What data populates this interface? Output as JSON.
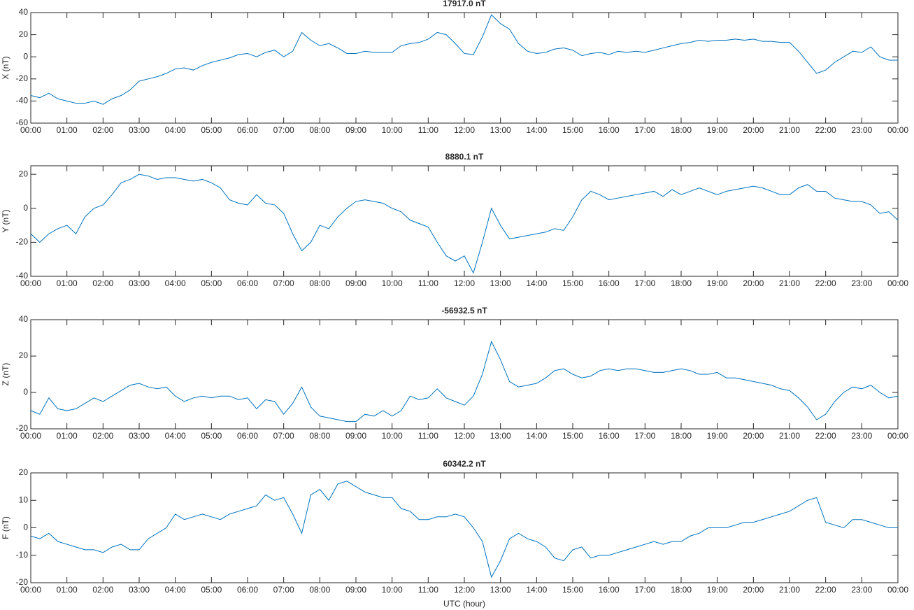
{
  "chart_data": [
    {
      "type": "line",
      "title": "17917.0 nT",
      "ylabel": "X (nT)",
      "color": "#0072bd",
      "x": [
        0,
        0.25,
        0.5,
        0.75,
        1,
        1.25,
        1.5,
        1.75,
        2,
        2.25,
        2.5,
        2.75,
        3,
        3.25,
        3.5,
        3.75,
        4,
        4.25,
        4.5,
        4.75,
        5,
        5.25,
        5.5,
        5.75,
        6,
        6.25,
        6.5,
        6.75,
        7,
        7.25,
        7.5,
        7.75,
        8,
        8.25,
        8.5,
        8.75,
        9,
        9.25,
        9.5,
        9.75,
        10,
        10.25,
        10.5,
        10.75,
        11,
        11.25,
        11.5,
        11.75,
        12,
        12.25,
        12.5,
        12.75,
        13,
        13.25,
        13.5,
        13.75,
        14,
        14.25,
        14.5,
        14.75,
        15,
        15.25,
        15.5,
        15.75,
        16,
        16.25,
        16.5,
        16.75,
        17,
        17.25,
        17.5,
        17.75,
        18,
        18.25,
        18.5,
        18.75,
        19,
        19.25,
        19.5,
        19.75,
        20,
        20.25,
        20.5,
        20.75,
        21,
        21.25,
        21.5,
        21.75,
        22,
        22.25,
        22.5,
        22.75,
        23,
        23.25,
        23.5,
        23.75,
        24
      ],
      "values": [
        -35,
        -37,
        -33,
        -38,
        -40,
        -42,
        -42,
        -40,
        -43,
        -38,
        -35,
        -30,
        -22,
        -20,
        -18,
        -15,
        -11,
        -10,
        -12,
        -8,
        -5,
        -3,
        -1,
        2,
        3,
        0,
        4,
        6,
        0,
        5,
        22,
        15,
        10,
        12,
        8,
        3,
        3,
        5,
        4,
        4,
        4,
        10,
        12,
        13,
        16,
        22,
        20,
        12,
        3,
        2,
        18,
        38,
        30,
        25,
        12,
        5,
        3,
        4,
        7,
        8,
        6,
        1,
        3,
        4,
        2,
        5,
        4,
        5,
        4,
        6,
        8,
        10,
        12,
        13,
        15,
        14,
        15,
        15,
        16,
        15,
        16,
        14,
        14,
        13,
        13,
        5,
        -5,
        -15,
        -12,
        -5,
        0,
        5,
        4,
        9,
        0,
        -3,
        -3
      ],
      "xlim": [
        0,
        24
      ],
      "ylim": [
        -60,
        40
      ],
      "yticks": [
        -60,
        -40,
        -20,
        0,
        20,
        40
      ],
      "xticks": [
        {
          "value": 0,
          "label": "00:00"
        },
        {
          "value": 1,
          "label": "01:00"
        },
        {
          "value": 2,
          "label": "02:00"
        },
        {
          "value": 3,
          "label": "03:00"
        },
        {
          "value": 4,
          "label": "04:00"
        },
        {
          "value": 5,
          "label": "05:00"
        },
        {
          "value": 6,
          "label": "06:00"
        },
        {
          "value": 7,
          "label": "07:00"
        },
        {
          "value": 8,
          "label": "08:00"
        },
        {
          "value": 9,
          "label": "09:00"
        },
        {
          "value": 10,
          "label": "10:00"
        },
        {
          "value": 11,
          "label": "11:00"
        },
        {
          "value": 12,
          "label": "12:00"
        },
        {
          "value": 13,
          "label": "13:00"
        },
        {
          "value": 14,
          "label": "14:00"
        },
        {
          "value": 15,
          "label": "15:00"
        },
        {
          "value": 16,
          "label": "16:00"
        },
        {
          "value": 17,
          "label": "17:00"
        },
        {
          "value": 18,
          "label": "18:00"
        },
        {
          "value": 19,
          "label": "19:00"
        },
        {
          "value": 20,
          "label": "20:00"
        },
        {
          "value": 21,
          "label": "21:00"
        },
        {
          "value": 22,
          "label": "22:00"
        },
        {
          "value": 23,
          "label": "23:00"
        },
        {
          "value": 24,
          "label": "00:00"
        }
      ]
    },
    {
      "type": "line",
      "title": "8880.1 nT",
      "ylabel": "Y (nT)",
      "color": "#0072bd",
      "x": [
        0,
        0.25,
        0.5,
        0.75,
        1,
        1.25,
        1.5,
        1.75,
        2,
        2.25,
        2.5,
        2.75,
        3,
        3.25,
        3.5,
        3.75,
        4,
        4.25,
        4.5,
        4.75,
        5,
        5.25,
        5.5,
        5.75,
        6,
        6.25,
        6.5,
        6.75,
        7,
        7.25,
        7.5,
        7.75,
        8,
        8.25,
        8.5,
        8.75,
        9,
        9.25,
        9.5,
        9.75,
        10,
        10.25,
        10.5,
        10.75,
        11,
        11.25,
        11.5,
        11.75,
        12,
        12.25,
        12.5,
        12.75,
        13,
        13.25,
        13.5,
        13.75,
        14,
        14.25,
        14.5,
        14.75,
        15,
        15.25,
        15.5,
        15.75,
        16,
        16.25,
        16.5,
        16.75,
        17,
        17.25,
        17.5,
        17.75,
        18,
        18.25,
        18.5,
        18.75,
        19,
        19.25,
        19.5,
        19.75,
        20,
        20.25,
        20.5,
        20.75,
        21,
        21.25,
        21.5,
        21.75,
        22,
        22.25,
        22.5,
        22.75,
        23,
        23.25,
        23.5,
        23.75,
        24
      ],
      "values": [
        -15,
        -20,
        -15,
        -12,
        -10,
        -15,
        -5,
        0,
        2,
        8,
        15,
        17,
        20,
        19,
        17,
        18,
        18,
        17,
        16,
        17,
        15,
        12,
        5,
        3,
        2,
        8,
        3,
        2,
        -3,
        -15,
        -25,
        -20,
        -10,
        -12,
        -5,
        0,
        4,
        5,
        4,
        3,
        0,
        -2,
        -7,
        -9,
        -11,
        -20,
        -28,
        -31,
        -28,
        -38,
        -20,
        0,
        -10,
        -18,
        -17,
        -16,
        -15,
        -14,
        -12,
        -13,
        -5,
        5,
        10,
        8,
        5,
        6,
        7,
        8,
        9,
        10,
        7,
        11,
        8,
        10,
        12,
        10,
        8,
        10,
        11,
        12,
        13,
        12,
        10,
        8,
        8,
        12,
        14,
        10,
        10,
        6,
        5,
        4,
        4,
        2,
        -3,
        -2,
        -7
      ],
      "xlim": [
        0,
        24
      ],
      "ylim": [
        -40,
        25
      ],
      "yticks": [
        -40,
        -20,
        0,
        20
      ],
      "xticks": [
        {
          "value": 0,
          "label": "00:00"
        },
        {
          "value": 1,
          "label": "01:00"
        },
        {
          "value": 2,
          "label": "02:00"
        },
        {
          "value": 3,
          "label": "03:00"
        },
        {
          "value": 4,
          "label": "04:00"
        },
        {
          "value": 5,
          "label": "05:00"
        },
        {
          "value": 6,
          "label": "06:00"
        },
        {
          "value": 7,
          "label": "07:00"
        },
        {
          "value": 8,
          "label": "08:00"
        },
        {
          "value": 9,
          "label": "09:00"
        },
        {
          "value": 10,
          "label": "10:00"
        },
        {
          "value": 11,
          "label": "11:00"
        },
        {
          "value": 12,
          "label": "12:00"
        },
        {
          "value": 13,
          "label": "13:00"
        },
        {
          "value": 14,
          "label": "14:00"
        },
        {
          "value": 15,
          "label": "15:00"
        },
        {
          "value": 16,
          "label": "16:00"
        },
        {
          "value": 17,
          "label": "17:00"
        },
        {
          "value": 18,
          "label": "18:00"
        },
        {
          "value": 19,
          "label": "19:00"
        },
        {
          "value": 20,
          "label": "20:00"
        },
        {
          "value": 21,
          "label": "21:00"
        },
        {
          "value": 22,
          "label": "22:00"
        },
        {
          "value": 23,
          "label": "23:00"
        },
        {
          "value": 24,
          "label": "00:00"
        }
      ]
    },
    {
      "type": "line",
      "title": "-56932.5 nT",
      "ylabel": "Z (nT)",
      "color": "#0072bd",
      "x": [
        0,
        0.25,
        0.5,
        0.75,
        1,
        1.25,
        1.5,
        1.75,
        2,
        2.25,
        2.5,
        2.75,
        3,
        3.25,
        3.5,
        3.75,
        4,
        4.25,
        4.5,
        4.75,
        5,
        5.25,
        5.5,
        5.75,
        6,
        6.25,
        6.5,
        6.75,
        7,
        7.25,
        7.5,
        7.75,
        8,
        8.25,
        8.5,
        8.75,
        9,
        9.25,
        9.5,
        9.75,
        10,
        10.25,
        10.5,
        10.75,
        11,
        11.25,
        11.5,
        11.75,
        12,
        12.25,
        12.5,
        12.75,
        13,
        13.25,
        13.5,
        13.75,
        14,
        14.25,
        14.5,
        14.75,
        15,
        15.25,
        15.5,
        15.75,
        16,
        16.25,
        16.5,
        16.75,
        17,
        17.25,
        17.5,
        17.75,
        18,
        18.25,
        18.5,
        18.75,
        19,
        19.25,
        19.5,
        19.75,
        20,
        20.25,
        20.5,
        20.75,
        21,
        21.25,
        21.5,
        21.75,
        22,
        22.25,
        22.5,
        22.75,
        23,
        23.25,
        23.5,
        23.75,
        24
      ],
      "values": [
        -10,
        -12,
        -3,
        -9,
        -10,
        -9,
        -6,
        -3,
        -5,
        -2,
        1,
        4,
        5,
        3,
        2,
        3,
        -2,
        -5,
        -3,
        -2,
        -3,
        -2,
        -2,
        -4,
        -3,
        -9,
        -4,
        -5,
        -12,
        -6,
        3,
        -8,
        -13,
        -14,
        -15,
        -16,
        -16,
        -12,
        -13,
        -10,
        -13,
        -10,
        -2,
        -4,
        -3,
        2,
        -3,
        -5,
        -7,
        -2,
        10,
        28,
        18,
        6,
        3,
        4,
        5,
        8,
        12,
        13,
        10,
        8,
        9,
        12,
        13,
        12,
        13,
        13,
        12,
        11,
        11,
        12,
        13,
        12,
        10,
        10,
        11,
        8,
        8,
        7,
        6,
        5,
        4,
        2,
        1,
        -3,
        -8,
        -15,
        -12,
        -5,
        0,
        3,
        2,
        4,
        0,
        -3,
        -2
      ],
      "xlim": [
        0,
        24
      ],
      "ylim": [
        -20,
        40
      ],
      "yticks": [
        -20,
        0,
        20,
        40
      ],
      "xticks": [
        {
          "value": 0,
          "label": "00:00"
        },
        {
          "value": 1,
          "label": "01:00"
        },
        {
          "value": 2,
          "label": "02:00"
        },
        {
          "value": 3,
          "label": "03:00"
        },
        {
          "value": 4,
          "label": "04:00"
        },
        {
          "value": 5,
          "label": "05:00"
        },
        {
          "value": 6,
          "label": "06:00"
        },
        {
          "value": 7,
          "label": "07:00"
        },
        {
          "value": 8,
          "label": "08:00"
        },
        {
          "value": 9,
          "label": "09:00"
        },
        {
          "value": 10,
          "label": "10:00"
        },
        {
          "value": 11,
          "label": "11:00"
        },
        {
          "value": 12,
          "label": "12:00"
        },
        {
          "value": 13,
          "label": "13:00"
        },
        {
          "value": 14,
          "label": "14:00"
        },
        {
          "value": 15,
          "label": "15:00"
        },
        {
          "value": 16,
          "label": "16:00"
        },
        {
          "value": 17,
          "label": "17:00"
        },
        {
          "value": 18,
          "label": "18:00"
        },
        {
          "value": 19,
          "label": "19:00"
        },
        {
          "value": 20,
          "label": "20:00"
        },
        {
          "value": 21,
          "label": "21:00"
        },
        {
          "value": 22,
          "label": "22:00"
        },
        {
          "value": 23,
          "label": "23:00"
        },
        {
          "value": 24,
          "label": "00:00"
        }
      ]
    },
    {
      "type": "line",
      "title": "60342.2 nT",
      "ylabel": "F (nT)",
      "xlabel": "UTC (hour)",
      "color": "#0072bd",
      "x": [
        0,
        0.25,
        0.5,
        0.75,
        1,
        1.25,
        1.5,
        1.75,
        2,
        2.25,
        2.5,
        2.75,
        3,
        3.25,
        3.5,
        3.75,
        4,
        4.25,
        4.5,
        4.75,
        5,
        5.25,
        5.5,
        5.75,
        6,
        6.25,
        6.5,
        6.75,
        7,
        7.25,
        7.5,
        7.75,
        8,
        8.25,
        8.5,
        8.75,
        9,
        9.25,
        9.5,
        9.75,
        10,
        10.25,
        10.5,
        10.75,
        11,
        11.25,
        11.5,
        11.75,
        12,
        12.25,
        12.5,
        12.75,
        13,
        13.25,
        13.5,
        13.75,
        14,
        14.25,
        14.5,
        14.75,
        15,
        15.25,
        15.5,
        15.75,
        16,
        16.25,
        16.5,
        16.75,
        17,
        17.25,
        17.5,
        17.75,
        18,
        18.25,
        18.5,
        18.75,
        19,
        19.25,
        19.5,
        19.75,
        20,
        20.25,
        20.5,
        20.75,
        21,
        21.25,
        21.5,
        21.75,
        22,
        22.25,
        22.5,
        22.75,
        23,
        23.25,
        23.5,
        23.75,
        24
      ],
      "values": [
        -3,
        -4,
        -2,
        -5,
        -6,
        -7,
        -8,
        -8,
        -9,
        -7,
        -6,
        -8,
        -8,
        -4,
        -2,
        0,
        5,
        3,
        4,
        5,
        4,
        3,
        5,
        6,
        7,
        8,
        12,
        10,
        11,
        5,
        -2,
        12,
        14,
        10,
        16,
        17,
        15,
        13,
        12,
        11,
        11,
        7,
        6,
        3,
        3,
        4,
        4,
        5,
        4,
        0,
        -5,
        -18,
        -12,
        -4,
        -2,
        -4,
        -5,
        -7,
        -11,
        -12,
        -8,
        -7,
        -11,
        -10,
        -10,
        -9,
        -8,
        -7,
        -6,
        -5,
        -6,
        -5,
        -5,
        -3,
        -2,
        0,
        0,
        0,
        1,
        2,
        2,
        3,
        4,
        5,
        6,
        8,
        10,
        11,
        2,
        1,
        0,
        3,
        3,
        2,
        1,
        0,
        0
      ],
      "xlim": [
        0,
        24
      ],
      "ylim": [
        -20,
        20
      ],
      "yticks": [
        -20,
        -10,
        0,
        10,
        20
      ],
      "xticks": [
        {
          "value": 0,
          "label": "00:00"
        },
        {
          "value": 1,
          "label": "01:00"
        },
        {
          "value": 2,
          "label": "02:00"
        },
        {
          "value": 3,
          "label": "03:00"
        },
        {
          "value": 4,
          "label": "04:00"
        },
        {
          "value": 5,
          "label": "05:00"
        },
        {
          "value": 6,
          "label": "06:00"
        },
        {
          "value": 7,
          "label": "07:00"
        },
        {
          "value": 8,
          "label": "08:00"
        },
        {
          "value": 9,
          "label": "09:00"
        },
        {
          "value": 10,
          "label": "10:00"
        },
        {
          "value": 11,
          "label": "11:00"
        },
        {
          "value": 12,
          "label": "12:00"
        },
        {
          "value": 13,
          "label": "13:00"
        },
        {
          "value": 14,
          "label": "14:00"
        },
        {
          "value": 15,
          "label": "15:00"
        },
        {
          "value": 16,
          "label": "16:00"
        },
        {
          "value": 17,
          "label": "17:00"
        },
        {
          "value": 18,
          "label": "18:00"
        },
        {
          "value": 19,
          "label": "19:00"
        },
        {
          "value": 20,
          "label": "20:00"
        },
        {
          "value": 21,
          "label": "21:00"
        },
        {
          "value": 22,
          "label": "22:00"
        },
        {
          "value": 23,
          "label": "23:00"
        },
        {
          "value": 24,
          "label": "00:00"
        }
      ]
    }
  ]
}
